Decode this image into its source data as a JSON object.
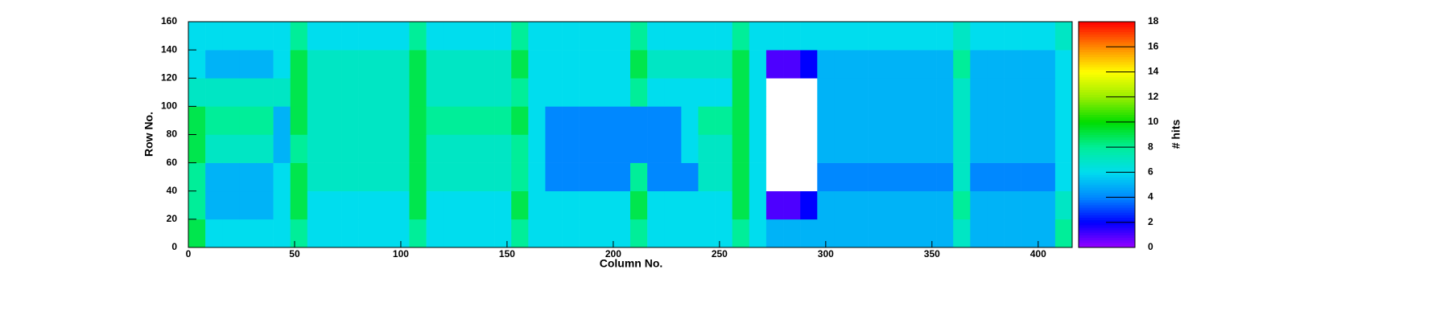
{
  "chart_data": {
    "type": "heatmap",
    "xlabel": "Column No.",
    "ylabel": "Row No.",
    "zlabel": "# hits",
    "xlim": [
      0,
      416
    ],
    "ylim": [
      0,
      160
    ],
    "zlim": [
      0,
      18
    ],
    "xticks": [
      0,
      50,
      100,
      150,
      200,
      250,
      300,
      350,
      400
    ],
    "yticks": [
      0,
      20,
      40,
      60,
      80,
      100,
      120,
      140,
      160
    ],
    "zticks": [
      0,
      2,
      4,
      6,
      8,
      10,
      12,
      14,
      16,
      18
    ],
    "palette": [
      "#9900ff",
      "#0000ff",
      "#0088ff",
      "#00ddee",
      "#00ee99",
      "#00dd00",
      "#99ee00",
      "#ffff00",
      "#ff8800",
      "#ff0000"
    ],
    "empty_color": "#ffffff",
    "z": [
      [
        9,
        6,
        6,
        6,
        6,
        6,
        8,
        6,
        6,
        6,
        6,
        6,
        6,
        8,
        6,
        6,
        6,
        6,
        6,
        8,
        6,
        6,
        6,
        6,
        6,
        6,
        8,
        6,
        6,
        6,
        6,
        6,
        8,
        6,
        5,
        5,
        5,
        5,
        5,
        5,
        5,
        5,
        5,
        5,
        5,
        7,
        5,
        5,
        5,
        5,
        5,
        8
      ],
      [
        8,
        5,
        5,
        5,
        5,
        6,
        9,
        6,
        6,
        6,
        6,
        6,
        6,
        9,
        6,
        6,
        6,
        6,
        6,
        9,
        6,
        6,
        6,
        6,
        6,
        6,
        9,
        6,
        6,
        6,
        6,
        6,
        9,
        6,
        1,
        1,
        2,
        5,
        5,
        5,
        5,
        5,
        5,
        5,
        5,
        8,
        5,
        5,
        5,
        5,
        5,
        7
      ],
      [
        8,
        5,
        5,
        5,
        5,
        6,
        9,
        7,
        7,
        7,
        7,
        7,
        7,
        9,
        7,
        7,
        7,
        7,
        7,
        8,
        6,
        4,
        4,
        4,
        4,
        4,
        8,
        4,
        4,
        4,
        7,
        7,
        9,
        6,
        0,
        0,
        0,
        4,
        4,
        4,
        4,
        4,
        4,
        4,
        4,
        7,
        4,
        4,
        4,
        4,
        4,
        6
      ],
      [
        9,
        7,
        7,
        7,
        7,
        5,
        8,
        7,
        7,
        7,
        7,
        7,
        7,
        9,
        7,
        7,
        7,
        7,
        7,
        8,
        6,
        4,
        4,
        4,
        4,
        4,
        4,
        4,
        4,
        6,
        7,
        7,
        9,
        6,
        0,
        0,
        0,
        5,
        5,
        5,
        5,
        5,
        5,
        5,
        5,
        7,
        5,
        5,
        5,
        5,
        5,
        6
      ],
      [
        9,
        8,
        8,
        8,
        8,
        5,
        9,
        7,
        7,
        7,
        7,
        7,
        7,
        9,
        8,
        8,
        8,
        8,
        8,
        9,
        6,
        4,
        4,
        4,
        4,
        4,
        4,
        4,
        4,
        6,
        8,
        8,
        9,
        6,
        0,
        0,
        0,
        5,
        5,
        5,
        5,
        5,
        5,
        5,
        5,
        7,
        5,
        5,
        5,
        5,
        5,
        6
      ],
      [
        7,
        7,
        7,
        7,
        7,
        7,
        9,
        7,
        7,
        7,
        7,
        7,
        7,
        9,
        7,
        7,
        7,
        7,
        7,
        8,
        6,
        6,
        6,
        6,
        6,
        6,
        8,
        6,
        6,
        6,
        6,
        6,
        9,
        6,
        0,
        0,
        0,
        5,
        5,
        5,
        5,
        5,
        5,
        5,
        5,
        7,
        5,
        5,
        5,
        5,
        5,
        6
      ],
      [
        6,
        5,
        5,
        5,
        5,
        6,
        9,
        7,
        7,
        7,
        7,
        7,
        7,
        9,
        7,
        7,
        7,
        7,
        7,
        9,
        6,
        6,
        6,
        6,
        6,
        6,
        9,
        7,
        7,
        7,
        7,
        7,
        9,
        6,
        1,
        1,
        2,
        5,
        5,
        5,
        5,
        5,
        5,
        5,
        5,
        8,
        5,
        5,
        5,
        5,
        5,
        6
      ],
      [
        6,
        6,
        6,
        6,
        6,
        6,
        8,
        6,
        6,
        6,
        6,
        6,
        6,
        8,
        6,
        6,
        6,
        6,
        6,
        8,
        6,
        6,
        6,
        6,
        6,
        6,
        8,
        6,
        6,
        6,
        6,
        6,
        8,
        6,
        6,
        6,
        6,
        6,
        6,
        6,
        6,
        6,
        6,
        6,
        6,
        7,
        6,
        6,
        6,
        6,
        6,
        7
      ]
    ]
  }
}
